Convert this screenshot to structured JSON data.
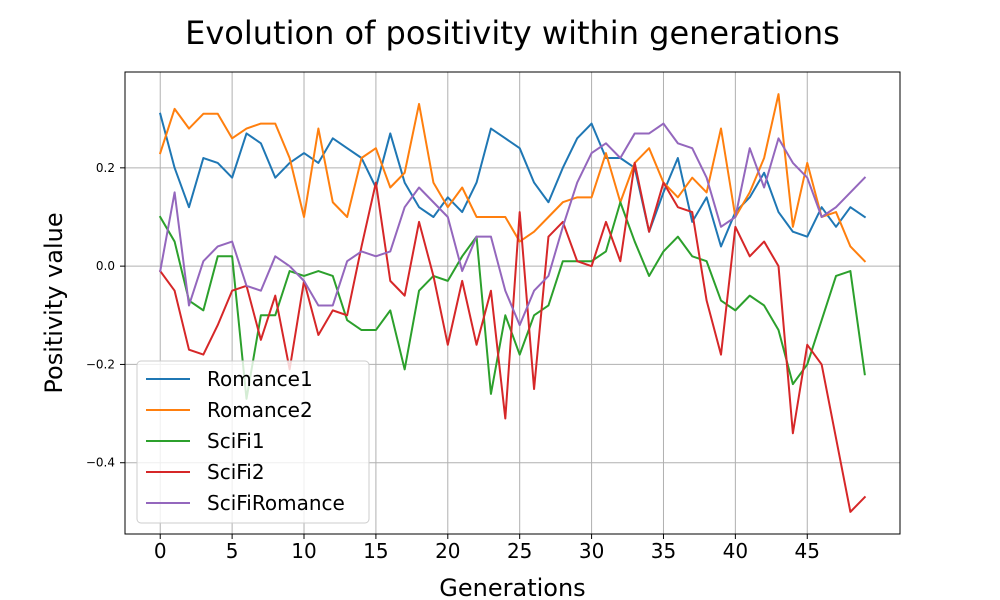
{
  "chart_data": {
    "type": "line",
    "title": "Evolution of positivity within generations",
    "xlabel": "Generations",
    "ylabel": "Positivity value",
    "xlim": [
      -2.45,
      51.45
    ],
    "ylim": [
      -0.545,
      0.395
    ],
    "xticks": [
      0,
      5,
      10,
      15,
      20,
      25,
      30,
      35,
      40,
      45
    ],
    "xtick_labels": [
      "0",
      "5",
      "10",
      "15",
      "20",
      "25",
      "30",
      "35",
      "40",
      "45"
    ],
    "yticks": [
      -0.4,
      -0.2,
      0.0,
      0.2
    ],
    "ytick_labels": [
      "−0.4",
      "−0.2",
      "0.0",
      "0.2"
    ],
    "grid": true,
    "legend_position": "lower-left",
    "x": [
      0,
      1,
      2,
      3,
      4,
      5,
      6,
      7,
      8,
      9,
      10,
      11,
      12,
      13,
      14,
      15,
      16,
      17,
      18,
      19,
      20,
      21,
      22,
      23,
      24,
      25,
      26,
      27,
      28,
      29,
      30,
      31,
      32,
      33,
      34,
      35,
      36,
      37,
      38,
      39,
      40,
      41,
      42,
      43,
      44,
      45,
      46,
      47,
      48,
      49
    ],
    "series": [
      {
        "name": "Romance1",
        "color": "#1f77b4",
        "values": [
          0.31,
          0.2,
          0.12,
          0.22,
          0.21,
          0.18,
          0.27,
          0.25,
          0.18,
          0.21,
          0.23,
          0.21,
          0.26,
          0.24,
          0.22,
          0.16,
          0.27,
          0.17,
          0.12,
          0.1,
          0.14,
          0.11,
          0.17,
          0.28,
          0.26,
          0.24,
          0.17,
          0.13,
          0.2,
          0.26,
          0.29,
          0.22,
          0.22,
          0.2,
          0.07,
          0.15,
          0.22,
          0.09,
          0.14,
          0.04,
          0.11,
          0.14,
          0.19,
          0.11,
          0.07,
          0.06,
          0.12,
          0.08,
          0.12,
          0.1
        ]
      },
      {
        "name": "Romance2",
        "color": "#ff7f0e",
        "values": [
          0.23,
          0.32,
          0.28,
          0.31,
          0.31,
          0.26,
          0.28,
          0.29,
          0.29,
          0.22,
          0.1,
          0.28,
          0.13,
          0.1,
          0.22,
          0.24,
          0.16,
          0.19,
          0.33,
          0.17,
          0.12,
          0.16,
          0.1,
          0.1,
          0.1,
          0.05,
          0.07,
          0.1,
          0.13,
          0.14,
          0.14,
          0.23,
          0.13,
          0.21,
          0.24,
          0.17,
          0.14,
          0.18,
          0.15,
          0.28,
          0.1,
          0.15,
          0.22,
          0.35,
          0.08,
          0.21,
          0.1,
          0.11,
          0.04,
          0.01
        ]
      },
      {
        "name": "SciFi1",
        "color": "#2ca02c",
        "values": [
          0.1,
          0.05,
          -0.07,
          -0.09,
          0.02,
          0.02,
          -0.27,
          -0.1,
          -0.1,
          -0.01,
          -0.02,
          -0.01,
          -0.02,
          -0.11,
          -0.13,
          -0.13,
          -0.09,
          -0.21,
          -0.05,
          -0.02,
          -0.03,
          0.02,
          0.06,
          -0.26,
          -0.1,
          -0.18,
          -0.1,
          -0.08,
          0.01,
          0.01,
          0.01,
          0.03,
          0.13,
          0.05,
          -0.02,
          0.03,
          0.06,
          0.02,
          0.01,
          -0.07,
          -0.09,
          -0.06,
          -0.08,
          -0.13,
          -0.24,
          -0.2,
          -0.11,
          -0.02,
          -0.01,
          -0.22
        ]
      },
      {
        "name": "SciFi2",
        "color": "#d62728",
        "values": [
          -0.01,
          -0.05,
          -0.17,
          -0.18,
          -0.12,
          -0.05,
          -0.04,
          -0.15,
          -0.06,
          -0.21,
          -0.03,
          -0.14,
          -0.09,
          -0.1,
          0.04,
          0.17,
          -0.03,
          -0.06,
          0.09,
          -0.02,
          -0.16,
          -0.03,
          -0.16,
          -0.05,
          -0.31,
          0.11,
          -0.25,
          0.06,
          0.09,
          0.01,
          0.0,
          0.09,
          0.01,
          0.21,
          0.07,
          0.17,
          0.12,
          0.11,
          -0.07,
          -0.18,
          0.08,
          0.02,
          0.05,
          0.0,
          -0.34,
          -0.16,
          -0.2,
          -0.35,
          -0.5,
          -0.47
        ]
      },
      {
        "name": "SciFiRomance",
        "color": "#9467bd",
        "values": [
          -0.01,
          0.15,
          -0.08,
          0.01,
          0.04,
          0.05,
          -0.04,
          -0.05,
          0.02,
          0.0,
          -0.03,
          -0.08,
          -0.08,
          0.01,
          0.03,
          0.02,
          0.03,
          0.12,
          0.16,
          0.13,
          0.1,
          -0.01,
          0.06,
          0.06,
          -0.05,
          -0.12,
          -0.05,
          -0.02,
          0.08,
          0.17,
          0.23,
          0.25,
          0.22,
          0.27,
          0.27,
          0.29,
          0.25,
          0.24,
          0.18,
          0.08,
          0.1,
          0.24,
          0.16,
          0.26,
          0.21,
          0.18,
          0.1,
          0.12,
          0.15,
          0.18
        ]
      }
    ]
  }
}
